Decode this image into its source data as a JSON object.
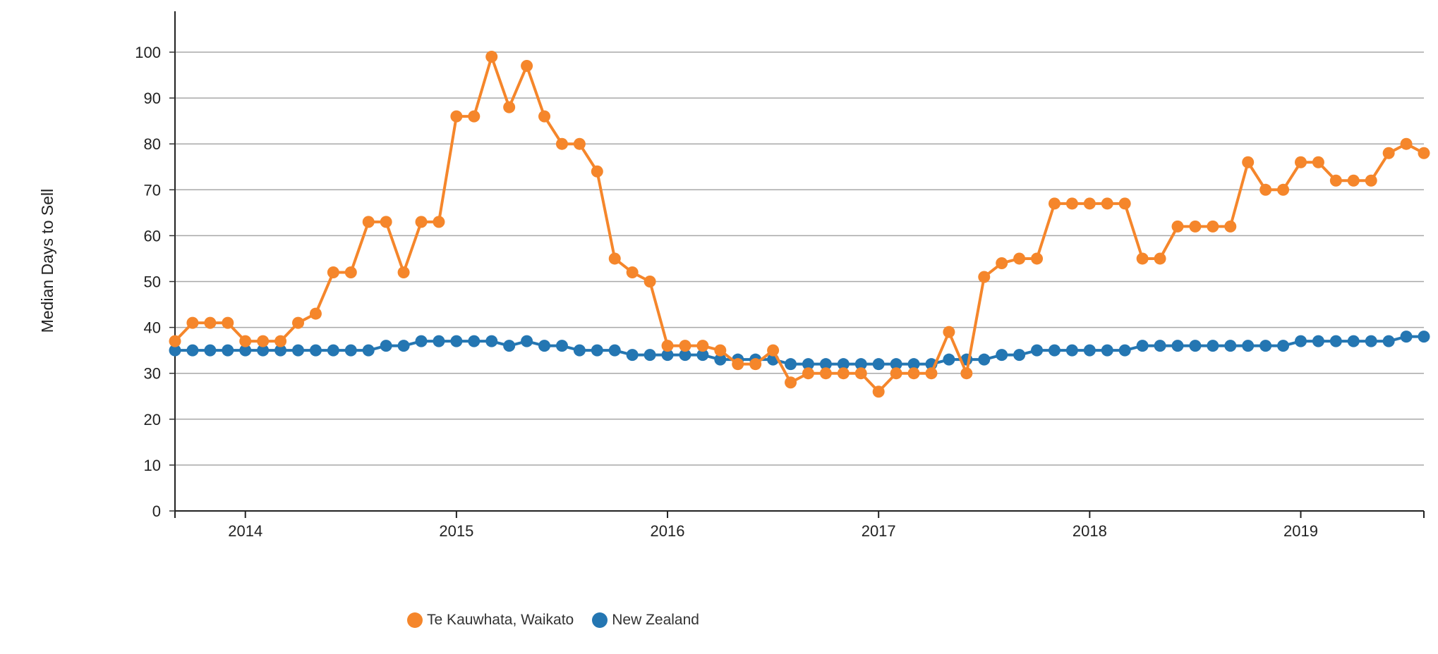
{
  "chart_data": {
    "type": "line",
    "ylabel": "Median Days to Sell",
    "xlabel": "",
    "ylim": [
      0,
      100
    ],
    "yticks": [
      0,
      10,
      20,
      30,
      40,
      50,
      60,
      70,
      80,
      90,
      100
    ],
    "xticks": [
      "2014",
      "2015",
      "2016",
      "2017",
      "2018",
      "2019"
    ],
    "x_start": "2013-09",
    "grid": true,
    "legend_position": "bottom",
    "series": [
      {
        "name": "Te Kauwhata, Waikato",
        "color": "#f5862b",
        "values": [
          37,
          41,
          41,
          41,
          37,
          37,
          37,
          41,
          43,
          52,
          52,
          63,
          63,
          52,
          63,
          63,
          86,
          86,
          99,
          88,
          97,
          86,
          80,
          80,
          74,
          55,
          52,
          50,
          36,
          36,
          36,
          35,
          32,
          32,
          35,
          28,
          30,
          30,
          30,
          30,
          26,
          30,
          30,
          30,
          39,
          30,
          51,
          54,
          55,
          55,
          67,
          67,
          67,
          67,
          67,
          55,
          55,
          62,
          62,
          62,
          62,
          76,
          70,
          70,
          76,
          76,
          72,
          72,
          72,
          78,
          80,
          78
        ]
      },
      {
        "name": "New Zealand",
        "color": "#2476b2",
        "values": [
          35,
          35,
          35,
          35,
          35,
          35,
          35,
          35,
          35,
          35,
          35,
          35,
          36,
          36,
          37,
          37,
          37,
          37,
          37,
          36,
          37,
          36,
          36,
          35,
          35,
          35,
          34,
          34,
          34,
          34,
          34,
          33,
          33,
          33,
          33,
          32,
          32,
          32,
          32,
          32,
          32,
          32,
          32,
          32,
          33,
          33,
          33,
          34,
          34,
          35,
          35,
          35,
          35,
          35,
          35,
          36,
          36,
          36,
          36,
          36,
          36,
          36,
          36,
          36,
          37,
          37,
          37,
          37,
          37,
          37,
          38,
          38
        ]
      }
    ]
  }
}
